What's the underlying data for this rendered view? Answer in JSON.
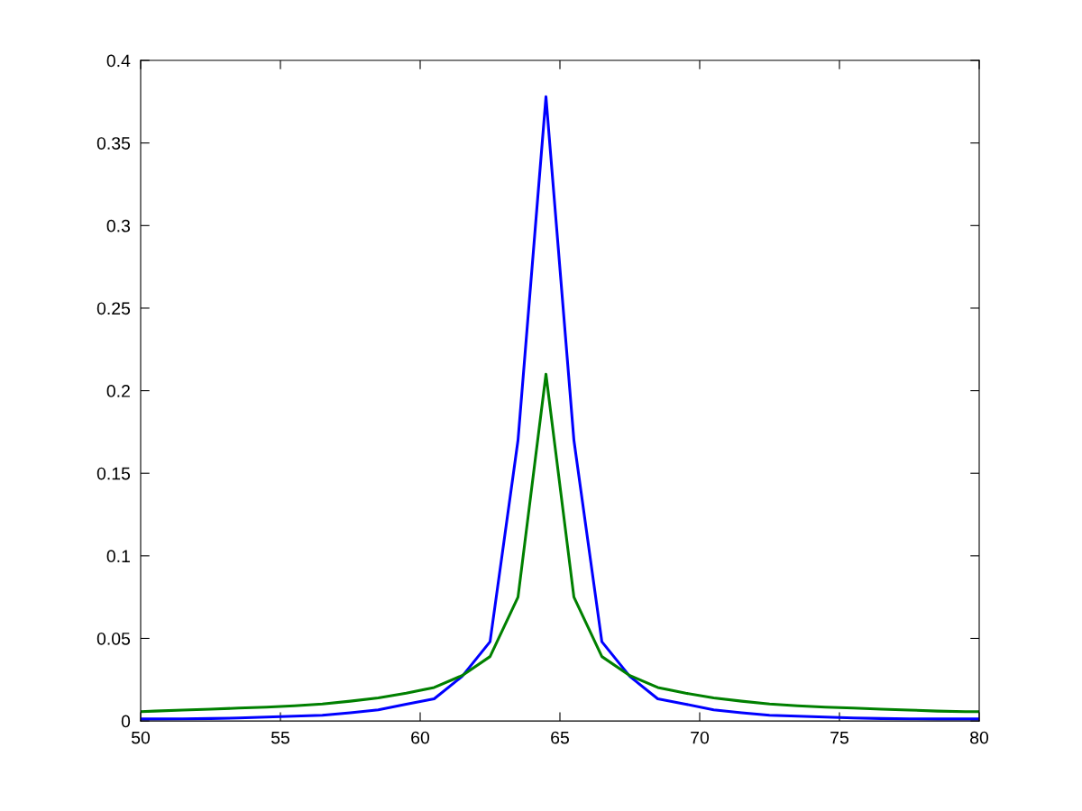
{
  "chart_data": {
    "type": "line",
    "series": [
      {
        "color": "#0000ff",
        "x": [
          50,
          50.5,
          51.5,
          52.5,
          53.5,
          54.5,
          55.5,
          56.5,
          57.5,
          58.5,
          59.5,
          60.5,
          61.5,
          62.5,
          63.5,
          64.5,
          65.5,
          66.5,
          67.5,
          68.5,
          69.5,
          70.5,
          71.5,
          72.5,
          73.5,
          74.5,
          75.5,
          76.5,
          77.5,
          78.5,
          79.5,
          80
        ],
        "values": [
          0.0012,
          0.0012,
          0.0013,
          0.0015,
          0.0018,
          0.0024,
          0.0029,
          0.0035,
          0.005,
          0.0067,
          0.0102,
          0.0134,
          0.027,
          0.048,
          0.17,
          0.378,
          0.17,
          0.048,
          0.027,
          0.0134,
          0.0102,
          0.0067,
          0.005,
          0.0035,
          0.0029,
          0.0024,
          0.0018,
          0.0015,
          0.0013,
          0.0012,
          0.0012,
          0.0012
        ]
      },
      {
        "color": "#008000",
        "x": [
          50,
          50.5,
          51.5,
          52.5,
          53.5,
          54.5,
          55.5,
          56.5,
          57.5,
          58.5,
          59.5,
          60.5,
          61.5,
          62.5,
          63.5,
          64.5,
          65.5,
          66.5,
          67.5,
          68.5,
          69.5,
          70.5,
          71.5,
          72.5,
          73.5,
          74.5,
          75.5,
          76.5,
          77.5,
          78.5,
          79.5,
          80
        ],
        "values": [
          0.0057,
          0.006,
          0.0066,
          0.0072,
          0.0078,
          0.0084,
          0.0092,
          0.0103,
          0.012,
          0.014,
          0.0168,
          0.0203,
          0.0275,
          0.039,
          0.075,
          0.21,
          0.075,
          0.039,
          0.0275,
          0.0203,
          0.0168,
          0.014,
          0.012,
          0.0103,
          0.0092,
          0.0084,
          0.0078,
          0.0072,
          0.0066,
          0.006,
          0.0057,
          0.0057
        ]
      }
    ],
    "xlim": [
      50,
      80
    ],
    "ylim": [
      0,
      0.4
    ],
    "xticks": [
      50,
      55,
      60,
      65,
      70,
      75,
      80
    ],
    "yticks": [
      0,
      0.05,
      0.1,
      0.15,
      0.2,
      0.25,
      0.3,
      0.35,
      0.4
    ],
    "grid": false,
    "line_style": "solid"
  }
}
